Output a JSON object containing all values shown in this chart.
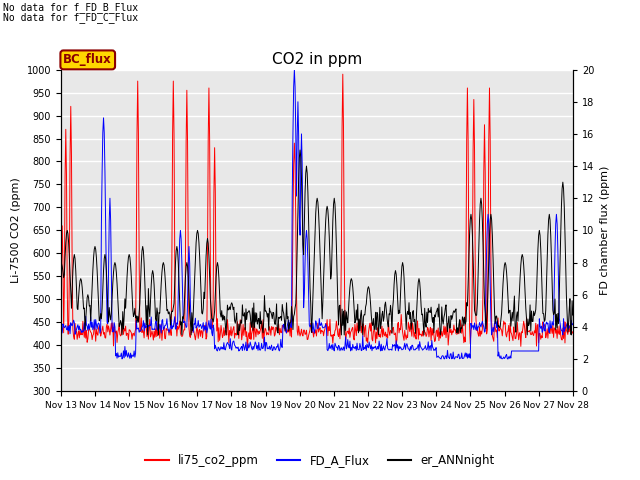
{
  "title": "CO2 in ppm",
  "ylabel_left": "Li-7500 CO2 (ppm)",
  "ylabel_right": "FD chamber flux (ppm)",
  "ylim_left": [
    300,
    1000
  ],
  "ylim_right": [
    0,
    20
  ],
  "yticks_left": [
    300,
    350,
    400,
    450,
    500,
    550,
    600,
    650,
    700,
    750,
    800,
    850,
    900,
    950,
    1000
  ],
  "yticks_right": [
    0,
    2,
    4,
    6,
    8,
    10,
    12,
    14,
    16,
    18,
    20
  ],
  "xlabel_dates": [
    "Nov 13",
    "Nov 14",
    "Nov 15",
    "Nov 16",
    "Nov 17",
    "Nov 18",
    "Nov 19",
    "Nov 20",
    "Nov 21",
    "Nov 22",
    "Nov 23",
    "Nov 24",
    "Nov 25",
    "Nov 26",
    "Nov 27",
    "Nov 28"
  ],
  "top_text_1": "No data for f_FD_B_Flux",
  "top_text_2": "No data for f_FD_C_Flux",
  "bc_flux_label": "BC_flux",
  "legend_items": [
    "li75_co2_ppm",
    "FD_A_Flux",
    "er_ANNnight"
  ],
  "colors": {
    "red": "#FF0000",
    "blue": "#0000FF",
    "black": "#000000",
    "bc_flux_bg": "#FFD700",
    "bc_flux_border": "#8B0000",
    "bc_flux_text": "#8B0000"
  },
  "background_color": "#E8E8E8",
  "grid_color": "#FFFFFF"
}
